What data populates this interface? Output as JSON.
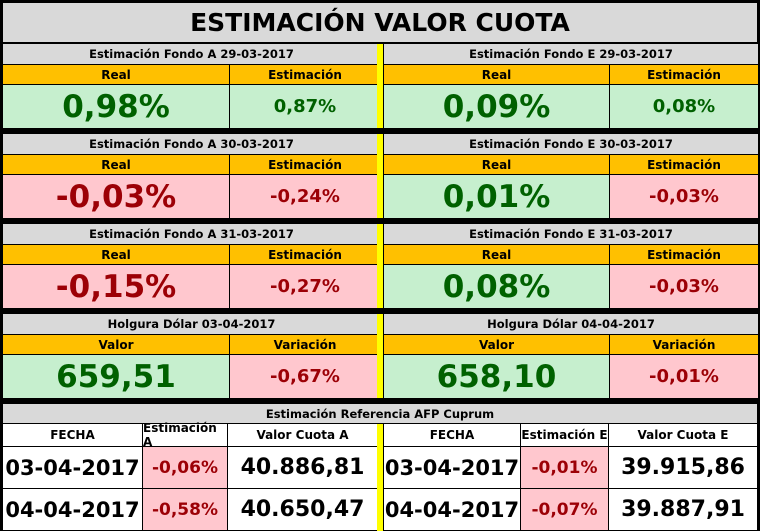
{
  "title": "ESTIMACIÓN VALOR CUOTA",
  "blocks": [
    {
      "left": {
        "header": "Estimación Fondo A  29-03-2017",
        "label1": "Real",
        "label2": "Estimación",
        "value1": "0,98%",
        "value2": "0,87%",
        "c1": "green",
        "c2": "green"
      },
      "right": {
        "header": "Estimación Fondo E  29-03-2017",
        "label1": "Real",
        "label2": "Estimación",
        "value1": "0,09%",
        "value2": "0,08%",
        "c1": "green",
        "c2": "green"
      }
    },
    {
      "left": {
        "header": "Estimación Fondo A  30-03-2017",
        "label1": "Real",
        "label2": "Estimación",
        "value1": "-0,03%",
        "value2": "-0,24%",
        "c1": "red",
        "c2": "red"
      },
      "right": {
        "header": "Estimación Fondo E  30-03-2017",
        "label1": "Real",
        "label2": "Estimación",
        "value1": "0,01%",
        "value2": "-0,03%",
        "c1": "green",
        "c2": "red"
      }
    },
    {
      "left": {
        "header": "Estimación Fondo A  31-03-2017",
        "label1": "Real",
        "label2": "Estimación",
        "value1": "-0,15%",
        "value2": "-0,27%",
        "c1": "red",
        "c2": "red"
      },
      "right": {
        "header": "Estimación Fondo E  31-03-2017",
        "label1": "Real",
        "label2": "Estimación",
        "value1": "0,08%",
        "value2": "-0,03%",
        "c1": "green",
        "c2": "red"
      }
    },
    {
      "left": {
        "header": "Holgura Dólar  03-04-2017",
        "label1": "Valor",
        "label2": "Variación",
        "value1": "659,51",
        "value2": "-0,67%",
        "c1": "green",
        "c2": "red"
      },
      "right": {
        "header": "Holgura Dólar  04-04-2017",
        "label1": "Valor",
        "label2": "Variación",
        "value1": "658,10",
        "value2": "-0,01%",
        "c1": "green",
        "c2": "red"
      }
    }
  ],
  "reference": {
    "header": "Estimación Referencia AFP Cuprum",
    "columns": [
      "FECHA",
      "Estimación A",
      "Valor Cuota A",
      "FECHA",
      "Estimación E",
      "Valor Cuota E"
    ],
    "rows": [
      [
        "03-04-2017",
        "-0,06%",
        "40.886,81",
        "03-04-2017",
        "-0,01%",
        "39.915,86"
      ],
      [
        "04-04-2017",
        "-0,58%",
        "40.650,47",
        "04-04-2017",
        "-0,07%",
        "39.887,91"
      ]
    ]
  },
  "colors": {
    "green_bg": "#c6efce",
    "green_text": "#006100",
    "red_bg": "#ffc7ce",
    "red_text": "#9c0006",
    "label_bg": "#ffc000",
    "header_bg": "#d9d9d9",
    "divider": "#ffff00"
  }
}
